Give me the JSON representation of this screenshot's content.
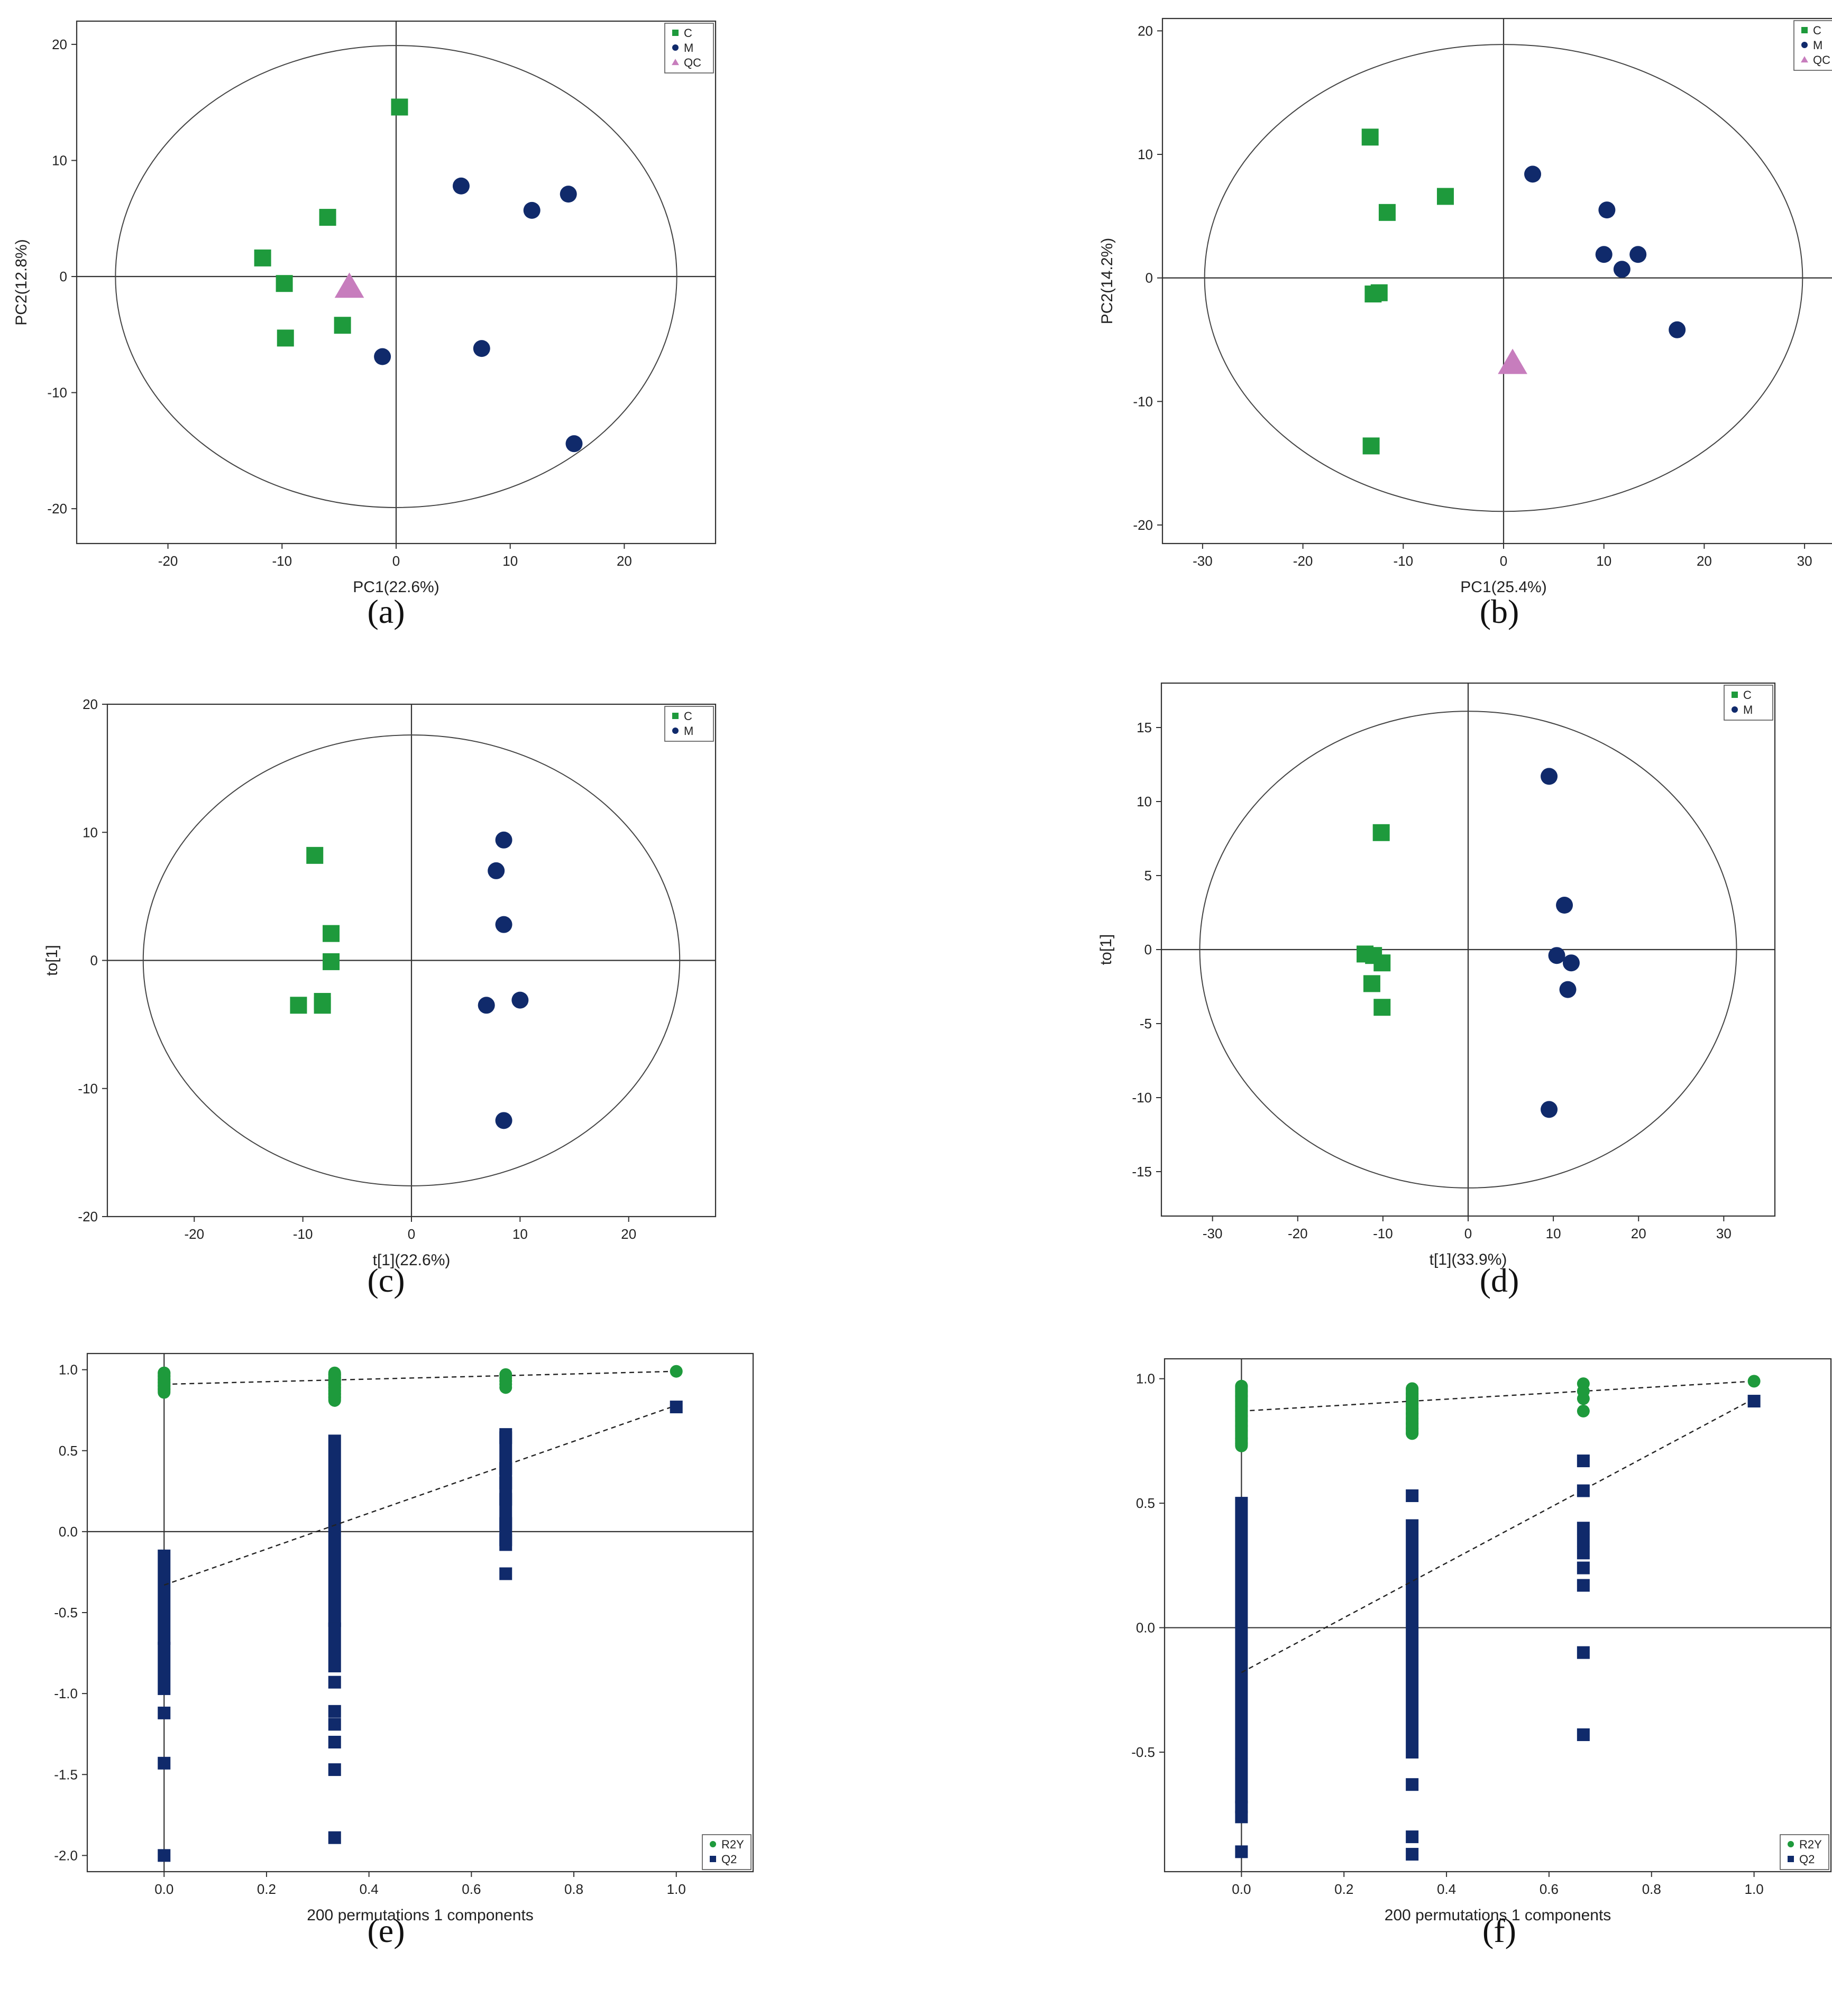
{
  "colors": {
    "C": "#1e9a3c",
    "M": "#102a6b",
    "QC": "#c77dbd",
    "R2Y": "#1e9a3c",
    "Q2": "#102a6b",
    "axis": "#333333"
  },
  "chart_data": [
    {
      "panel": "(a)",
      "type": "scatter",
      "xlabel": "PC1(22.6%)",
      "ylabel": "PC2(12.8%)",
      "xlim": [
        -28,
        28
      ],
      "ylim": [
        -23,
        22
      ],
      "xticks": [
        -20,
        -10,
        0,
        10,
        20
      ],
      "yticks": [
        -20,
        -10,
        0,
        10,
        20
      ],
      "ellipse": {
        "rx": 24.6,
        "ry": 19.9
      },
      "crosshair": true,
      "legend_position": "top-right",
      "series": [
        {
          "name": "C",
          "marker": "square",
          "points": [
            [
              0.3,
              14.6
            ],
            [
              -6,
              5.1
            ],
            [
              -11.7,
              1.6
            ],
            [
              -9.8,
              -0.6
            ],
            [
              -9.7,
              -5.3
            ],
            [
              -4.7,
              -4.2
            ]
          ]
        },
        {
          "name": "M",
          "marker": "circle",
          "points": [
            [
              5.7,
              7.8
            ],
            [
              11.9,
              5.7
            ],
            [
              15.1,
              7.1
            ],
            [
              7.5,
              -6.2
            ],
            [
              -1.2,
              -6.9
            ],
            [
              15.6,
              -14.4
            ]
          ]
        },
        {
          "name": "QC",
          "marker": "triangle",
          "points": [
            [
              -4.1,
              -0.9
            ]
          ]
        }
      ]
    },
    {
      "panel": "(b)",
      "type": "scatter",
      "xlabel": "PC1(25.4%)",
      "ylabel": "PC2(14.2%)",
      "xlim": [
        -34,
        34
      ],
      "ylim": [
        -21.5,
        21
      ],
      "xticks": [
        -30,
        -20,
        -10,
        0,
        10,
        20,
        30
      ],
      "yticks": [
        -20,
        -10,
        0,
        10,
        20
      ],
      "ellipse": {
        "rx": 29.8,
        "ry": 18.9
      },
      "crosshair": true,
      "legend_position": "top-right",
      "series": [
        {
          "name": "C",
          "marker": "square",
          "points": [
            [
              -13.3,
              11.4
            ],
            [
              -5.8,
              6.6
            ],
            [
              -11.6,
              5.3
            ],
            [
              -13,
              -1.3
            ],
            [
              -12.4,
              -1.2
            ],
            [
              -13.2,
              -13.6
            ]
          ]
        },
        {
          "name": "M",
          "marker": "circle",
          "points": [
            [
              2.9,
              8.4
            ],
            [
              10.3,
              5.5
            ],
            [
              10,
              1.9
            ],
            [
              13.4,
              1.9
            ],
            [
              11.8,
              0.7
            ],
            [
              17.3,
              -4.2
            ]
          ]
        },
        {
          "name": "QC",
          "marker": "triangle",
          "points": [
            [
              0.9,
              -6.9
            ]
          ]
        }
      ]
    },
    {
      "panel": "(c)",
      "type": "scatter",
      "xlabel": "t[1](22.6%)",
      "ylabel": "to[1]",
      "xlim": [
        -28,
        28
      ],
      "ylim": [
        -20,
        20
      ],
      "xticks": [
        -20,
        -10,
        0,
        10,
        20
      ],
      "yticks": [
        -20,
        -10,
        0,
        10,
        20
      ],
      "ellipse": {
        "rx": 24.7,
        "ry": 17.6
      },
      "crosshair": true,
      "legend_position": "top-right",
      "series": [
        {
          "name": "C",
          "marker": "square",
          "points": [
            [
              -8.9,
              8.2
            ],
            [
              -7.4,
              2.1
            ],
            [
              -7.4,
              -0.1
            ],
            [
              -10.4,
              -3.5
            ],
            [
              -8.2,
              -3.2
            ],
            [
              -8.2,
              -3.5
            ]
          ]
        },
        {
          "name": "M",
          "marker": "circle",
          "points": [
            [
              8.5,
              9.4
            ],
            [
              7.8,
              7
            ],
            [
              8.5,
              2.8
            ],
            [
              6.9,
              -3.5
            ],
            [
              10,
              -3.1
            ],
            [
              8.5,
              -12.5
            ]
          ]
        }
      ]
    },
    {
      "panel": "(d)",
      "type": "scatter",
      "xlabel": "t[1](33.9%)",
      "ylabel": "to[1]",
      "xlim": [
        -36,
        36
      ],
      "ylim": [
        -18,
        18
      ],
      "xticks": [
        -30,
        -20,
        -10,
        0,
        10,
        20,
        30
      ],
      "yticks": [
        -15,
        -10,
        -5,
        0,
        5,
        10,
        15
      ],
      "ellipse": {
        "rx": 31.5,
        "ry": 16.1
      },
      "crosshair": true,
      "legend_position": "top-right",
      "series": [
        {
          "name": "C",
          "marker": "square",
          "points": [
            [
              -10.2,
              7.9
            ],
            [
              -12.1,
              -0.3
            ],
            [
              -11.1,
              -0.4
            ],
            [
              -10.1,
              -0.9
            ],
            [
              -11.3,
              -2.3
            ],
            [
              -10.1,
              -3.9
            ]
          ]
        },
        {
          "name": "M",
          "marker": "circle",
          "points": [
            [
              9.5,
              11.7
            ],
            [
              11.3,
              3
            ],
            [
              10.4,
              -0.4
            ],
            [
              12.1,
              -0.9
            ],
            [
              11.7,
              -2.7
            ],
            [
              9.5,
              -10.8
            ]
          ]
        }
      ]
    },
    {
      "panel": "(e)",
      "type": "scatter",
      "xlabel": "200 permutations 1 components",
      "ylabel": "",
      "xlim": [
        -0.15,
        1.15
      ],
      "ylim": [
        -2.1,
        1.1
      ],
      "xticks": [
        0,
        0.2,
        0.4,
        0.6,
        0.8,
        1
      ],
      "yticks": [
        -2,
        -1.5,
        -1,
        -0.5,
        0,
        0.5,
        1
      ],
      "xtick_labels": [
        "0.0",
        "0.2",
        "0.4",
        "0.6",
        "0.8",
        "1.0"
      ],
      "ytick_labels": [
        "-2.0",
        "-1.5",
        "-1.0",
        "-0.5",
        "0.0",
        "0.5",
        "1.0"
      ],
      "crosshair": true,
      "legend_position": "bottom-right",
      "series": [
        {
          "name": "R2Y",
          "marker": "circle",
          "points": [
            [
              0,
              0.98
            ],
            [
              0,
              0.96
            ],
            [
              0,
              0.94
            ],
            [
              0,
              0.92
            ],
            [
              0,
              0.9
            ],
            [
              0,
              0.88
            ],
            [
              0.333,
              0.97
            ],
            [
              0.333,
              0.95
            ],
            [
              0.333,
              0.93
            ],
            [
              0.333,
              0.91
            ],
            [
              0.333,
              0.89
            ],
            [
              0.333,
              0.87
            ],
            [
              0.333,
              0.85
            ],
            [
              0.333,
              0.83
            ],
            [
              0.667,
              0.97
            ],
            [
              0.667,
              0.95
            ],
            [
              0.667,
              0.93
            ],
            [
              0.667,
              0.91
            ],
            [
              0.667,
              0.89
            ],
            [
              1,
              0.99
            ]
          ],
          "segments": [
            [
              0.98,
              0.86
            ],
            [
              0.98,
              0.81
            ]
          ]
        },
        {
          "name": "Q2",
          "marker": "square",
          "points": [
            [
              0,
              -1.12
            ],
            [
              0,
              -1.43
            ],
            [
              0,
              -2
            ],
            [
              0.333,
              -0.93
            ],
            [
              0.333,
              -1.11
            ],
            [
              0.333,
              -1.19
            ],
            [
              0.333,
              -1.3
            ],
            [
              0.333,
              -1.47
            ],
            [
              0.333,
              -1.89
            ],
            [
              0.667,
              0.58
            ],
            [
              0.667,
              0.39
            ],
            [
              0.667,
              0.3
            ],
            [
              0.667,
              0.2
            ],
            [
              0.667,
              0.05
            ],
            [
              0.667,
              -0.05
            ],
            [
              0.667,
              -0.26
            ],
            [
              1,
              0.77
            ]
          ],
          "segments": [
            [
              0.6,
              -0.08
            ],
            [
              -0.15,
              -0.66
            ],
            [
              -0.72,
              -0.97
            ],
            [
              0.56,
              -0.55
            ],
            [
              -0.6,
              -0.83
            ]
          ]
        }
      ],
      "regression_lines": [
        {
          "series": "R2Y",
          "x": [
            0,
            1
          ],
          "y": [
            0.91,
            0.99
          ]
        },
        {
          "series": "Q2",
          "x": [
            0,
            1
          ],
          "y": [
            -0.33,
            0.78
          ]
        }
      ]
    },
    {
      "panel": "(f)",
      "type": "scatter",
      "xlabel": "200 permutations 1 components",
      "ylabel": "",
      "xlim": [
        -0.15,
        1.15
      ],
      "ylim": [
        -0.98,
        1.08
      ],
      "xticks": [
        0,
        0.2,
        0.4,
        0.6,
        0.8,
        1
      ],
      "yticks": [
        -0.5,
        0,
        0.5,
        1
      ],
      "xtick_labels": [
        "0.0",
        "0.2",
        "0.4",
        "0.6",
        "0.8",
        "1.0"
      ],
      "ytick_labels": [
        "-0.5",
        "0.0",
        "0.5",
        "1.0"
      ],
      "crosshair": true,
      "legend_position": "bottom-right",
      "series": [
        {
          "name": "R2Y",
          "marker": "circle",
          "points": [
            [
              0,
              0.97
            ],
            [
              0,
              0.95
            ],
            [
              0,
              0.93
            ],
            [
              0,
              0.91
            ],
            [
              0,
              0.89
            ],
            [
              0,
              0.87
            ],
            [
              0,
              0.85
            ],
            [
              0,
              0.83
            ],
            [
              0,
              0.81
            ],
            [
              0,
              0.79
            ],
            [
              0,
              0.76
            ],
            [
              0,
              0.74
            ],
            [
              0.333,
              0.96
            ],
            [
              0.333,
              0.94
            ],
            [
              0.333,
              0.92
            ],
            [
              0.333,
              0.9
            ],
            [
              0.333,
              0.88
            ],
            [
              0.333,
              0.86
            ],
            [
              0.333,
              0.84
            ],
            [
              0.333,
              0.82
            ],
            [
              0.333,
              0.8
            ],
            [
              0.333,
              0.78
            ],
            [
              0.667,
              0.98
            ],
            [
              0.667,
              0.95
            ],
            [
              0.667,
              0.92
            ],
            [
              0.667,
              0.87
            ],
            [
              1,
              0.99
            ]
          ],
          "segments": [
            [
              0.97,
              0.73
            ],
            [
              0.96,
              0.78
            ]
          ]
        },
        {
          "name": "Q2",
          "marker": "square",
          "points": [
            [
              0,
              -0.72
            ],
            [
              0,
              -0.76
            ],
            [
              0,
              -0.9
            ],
            [
              0.333,
              0.53
            ],
            [
              0.333,
              -0.63
            ],
            [
              0.333,
              -0.84
            ],
            [
              0.333,
              -0.91
            ],
            [
              0.667,
              0.67
            ],
            [
              0.667,
              0.55
            ],
            [
              0.667,
              0.4
            ],
            [
              0.667,
              0.35
            ],
            [
              0.667,
              0.3
            ],
            [
              0.667,
              0.24
            ],
            [
              0.667,
              0.17
            ],
            [
              0.667,
              -0.1
            ],
            [
              0.667,
              -0.43
            ],
            [
              1,
              0.91
            ]
          ],
          "segments": [
            [
              0.5,
              -0.5
            ],
            [
              -0.55,
              -0.68
            ],
            [
              0.41,
              -0.5
            ]
          ]
        }
      ],
      "regression_lines": [
        {
          "series": "R2Y",
          "x": [
            0,
            1
          ],
          "y": [
            0.87,
            0.99
          ]
        },
        {
          "series": "Q2",
          "x": [
            0,
            1
          ],
          "y": [
            -0.18,
            0.92
          ]
        }
      ]
    }
  ]
}
